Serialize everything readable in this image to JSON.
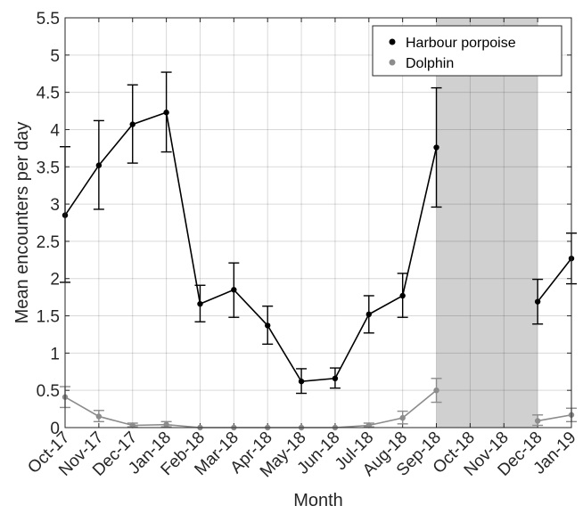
{
  "chart_data": {
    "type": "line",
    "title": "",
    "xlabel": "Month",
    "ylabel": "Mean encounters per day",
    "categories": [
      "Oct-17",
      "Nov-17",
      "Dec-17",
      "Jan-18",
      "Feb-18",
      "Mar-18",
      "Apr-18",
      "May-18",
      "Jun-18",
      "Jul-18",
      "Aug-18",
      "Sep-18",
      "Oct-18",
      "Nov-18",
      "Dec-18",
      "Jan-19"
    ],
    "ylim": [
      0,
      5.5
    ],
    "yticks": [
      "0",
      "0.5",
      "1",
      "1.5",
      "2",
      "2.5",
      "3",
      "3.5",
      "4",
      "4.5",
      "5",
      "5.5"
    ],
    "grid": true,
    "legend_position": "top-right",
    "shaded_region": {
      "from": "Sep-18",
      "to": "Dec-18",
      "color": "#d0d0d0"
    },
    "series": [
      {
        "name": "Harbour porpoise",
        "color": "#000000",
        "values": [
          2.85,
          3.52,
          4.07,
          4.23,
          1.66,
          1.85,
          1.37,
          0.62,
          0.66,
          1.52,
          1.77,
          3.76,
          null,
          null,
          1.69,
          2.27
        ],
        "err_low": [
          1.95,
          2.93,
          3.55,
          3.7,
          1.42,
          1.48,
          1.12,
          0.46,
          0.53,
          1.27,
          1.48,
          2.96,
          null,
          null,
          1.39,
          1.93
        ],
        "err_high": [
          3.77,
          4.12,
          4.6,
          4.77,
          1.91,
          2.21,
          1.63,
          0.79,
          0.8,
          1.77,
          2.07,
          4.56,
          null,
          null,
          1.99,
          2.61
        ]
      },
      {
        "name": "Dolphin",
        "color": "#8c8c8c",
        "values": [
          0.41,
          0.15,
          0.03,
          0.04,
          0.0,
          0.0,
          0.0,
          0.0,
          0.0,
          0.03,
          0.13,
          0.5,
          null,
          null,
          0.09,
          0.17
        ],
        "err_low": [
          0.27,
          0.08,
          0.01,
          0.01,
          0.0,
          0.0,
          0.0,
          0.0,
          0.0,
          0.01,
          0.05,
          0.34,
          null,
          null,
          0.03,
          0.08
        ],
        "err_high": [
          0.55,
          0.23,
          0.06,
          0.08,
          0.0,
          0.0,
          0.0,
          0.0,
          0.0,
          0.06,
          0.22,
          0.66,
          null,
          null,
          0.17,
          0.26
        ]
      }
    ]
  }
}
